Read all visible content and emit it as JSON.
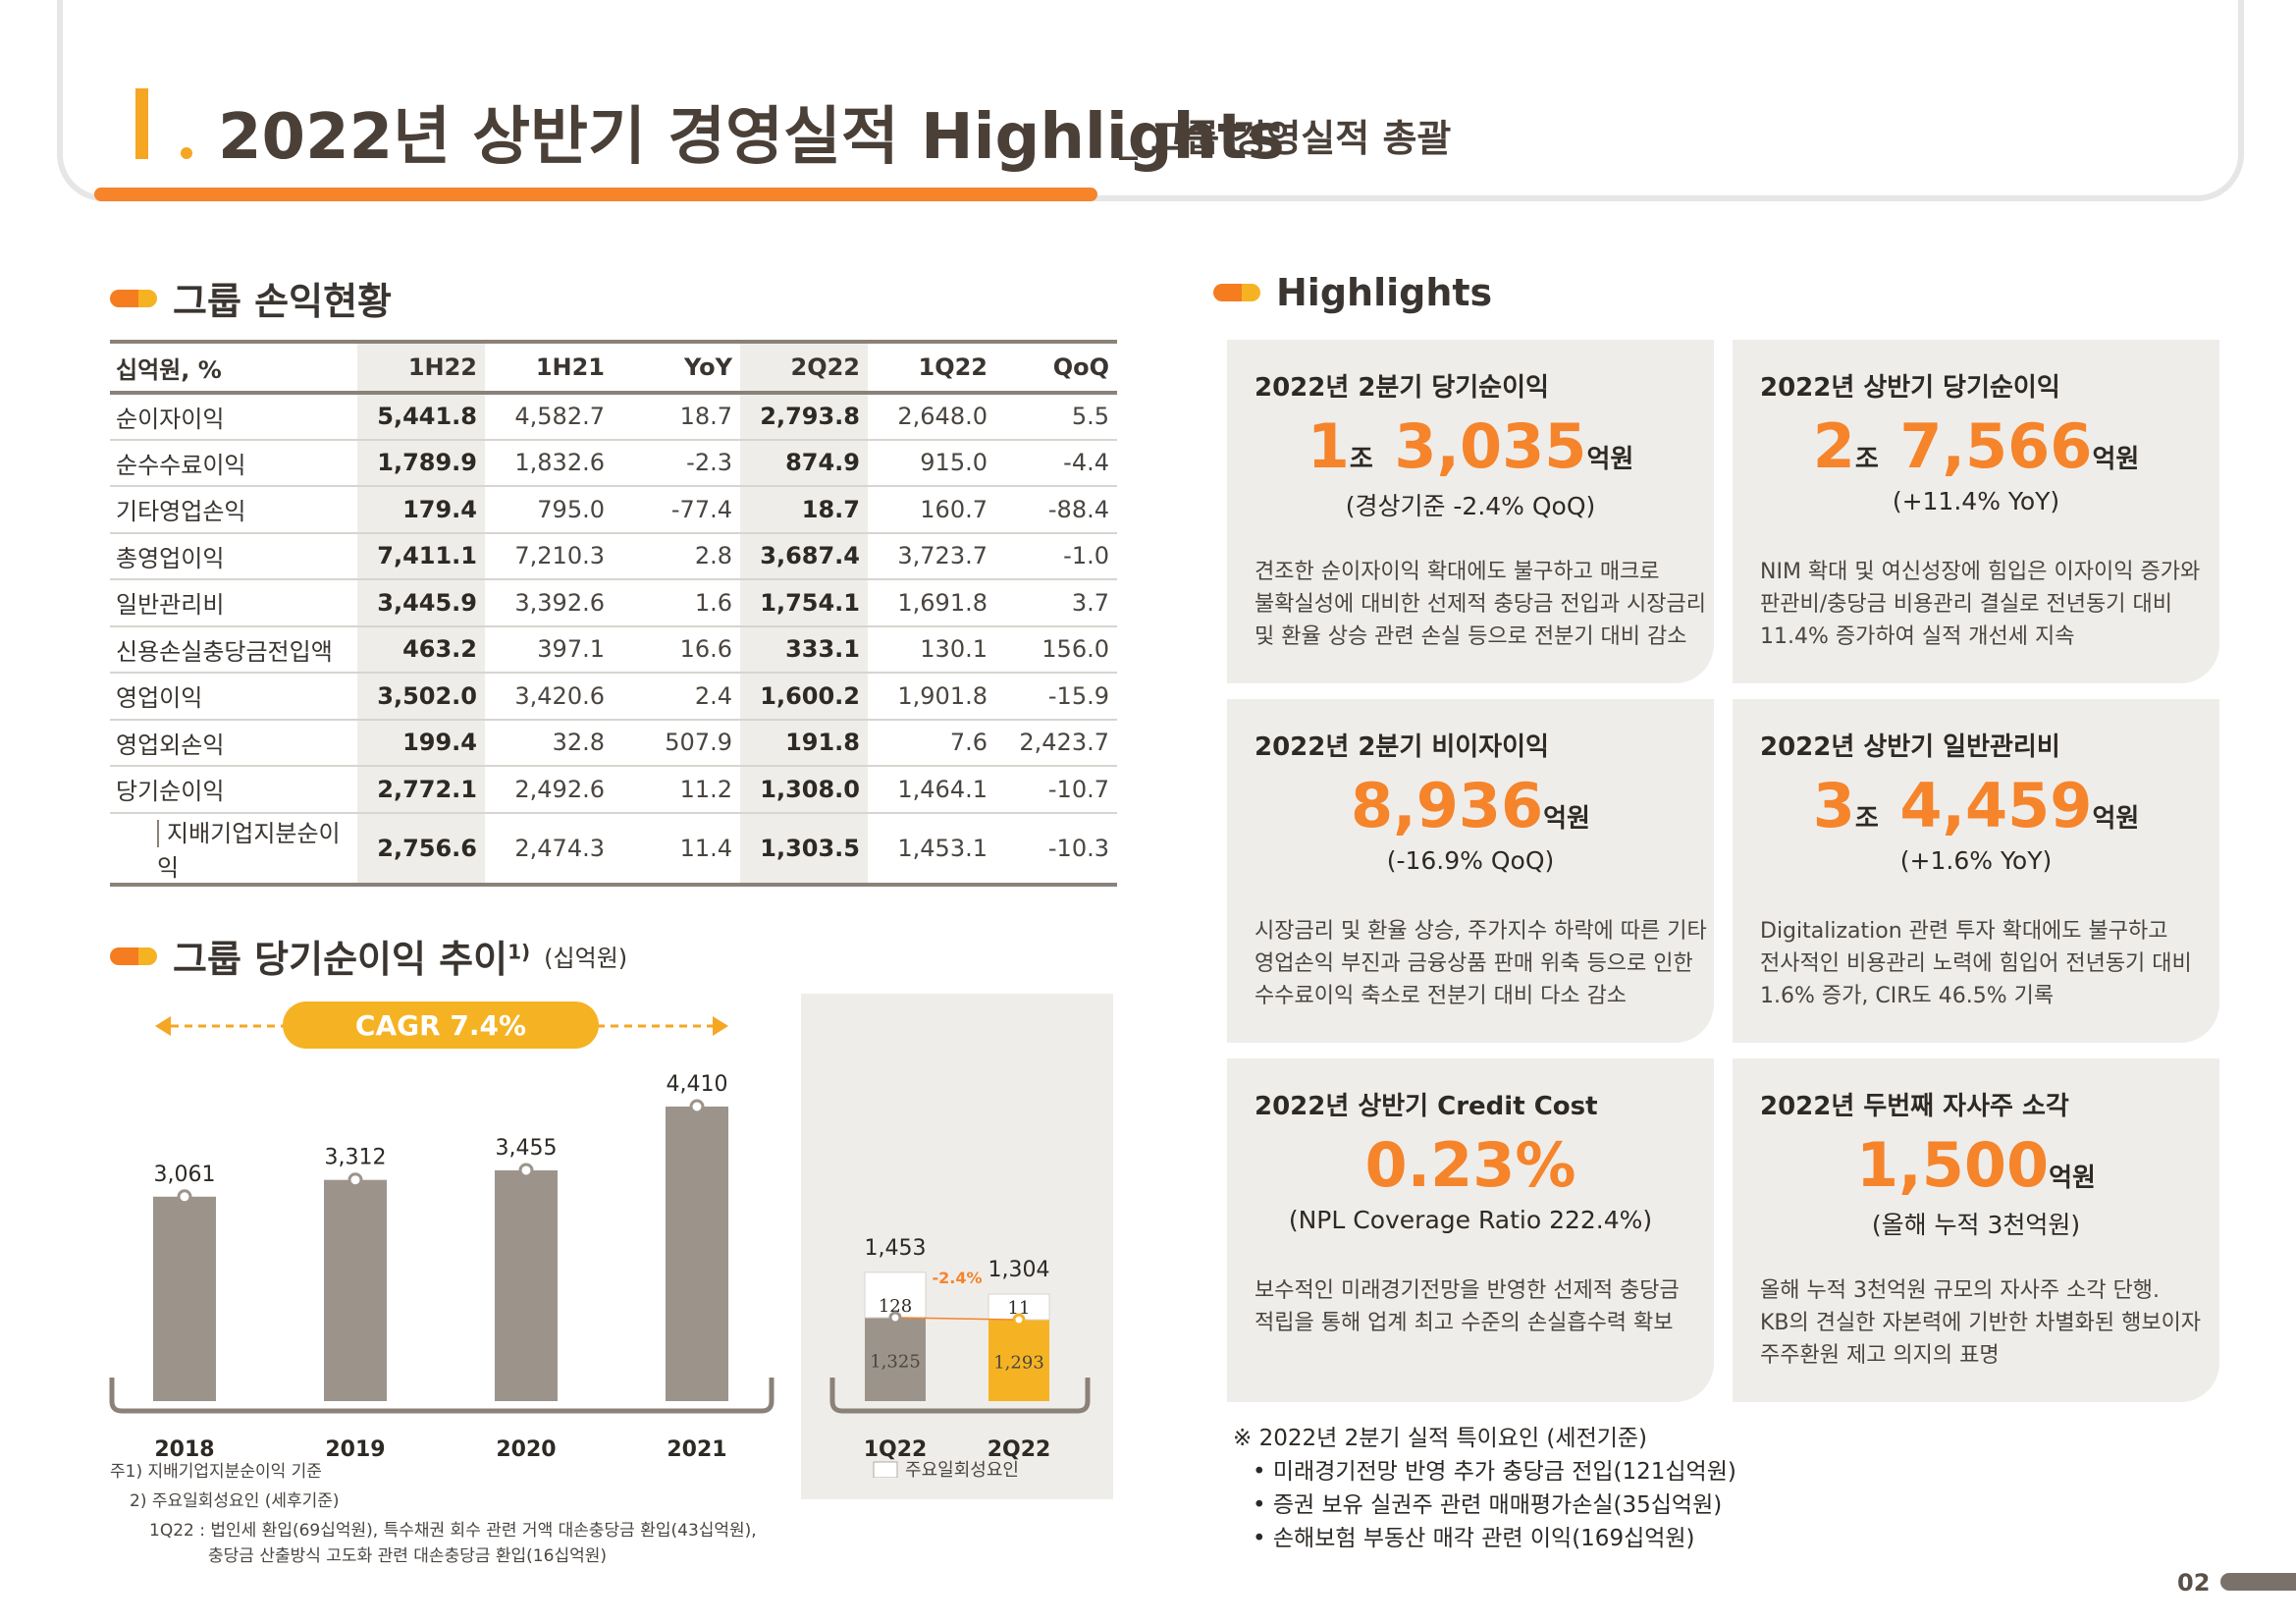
{
  "header": {
    "title": "2022년 상반기 경영실적 Highlights",
    "subtitle": "_ 그룹 경영실적 총괄"
  },
  "pl_section": {
    "title": "그룹 손익현황",
    "columns": [
      "십억원, %",
      "1H22",
      "1H21",
      "YoY",
      "2Q22",
      "1Q22",
      "QoQ"
    ],
    "rows": [
      [
        "순이자이익",
        "5,441.8",
        "4,582.7",
        "18.7",
        "2,793.8",
        "2,648.0",
        "5.5"
      ],
      [
        "순수수료이익",
        "1,789.9",
        "1,832.6",
        "-2.3",
        "874.9",
        "915.0",
        "-4.4"
      ],
      [
        "기타영업손익",
        "179.4",
        "795.0",
        "-77.4",
        "18.7",
        "160.7",
        "-88.4"
      ],
      [
        "총영업이익",
        "7,411.1",
        "7,210.3",
        "2.8",
        "3,687.4",
        "3,723.7",
        "-1.0"
      ],
      [
        "일반관리비",
        "3,445.9",
        "3,392.6",
        "1.6",
        "1,754.1",
        "1,691.8",
        "3.7"
      ],
      [
        "신용손실충당금전입액",
        "463.2",
        "397.1",
        "16.6",
        "333.1",
        "130.1",
        "156.0"
      ],
      [
        "영업이익",
        "3,502.0",
        "3,420.6",
        "2.4",
        "1,600.2",
        "1,901.8",
        "-15.9"
      ],
      [
        "영업외손익",
        "199.4",
        "32.8",
        "507.9",
        "191.8",
        "7.6",
        "2,423.7"
      ],
      [
        "당기순이익",
        "2,772.1",
        "2,492.6",
        "11.2",
        "1,308.0",
        "1,464.1",
        "-10.7"
      ],
      [
        "지배기업지분순이익",
        "2,756.6",
        "2,474.3",
        "11.4",
        "1,303.5",
        "1,453.1",
        "-10.3"
      ]
    ]
  },
  "trend_section": {
    "title": "그룹 당기순이익 추이",
    "title_sup": "1)",
    "unit": "(십억원)",
    "cagr": "CAGR 7.4%",
    "legend": "주요일회성요인",
    "footnotes": [
      "주1) 지배기업지분순이익 기준",
      "2) 주요일회성요인 (세후기준)",
      "1Q22 : 법인세 환입(69십억원), 특수채권 회수 관련 거액 대손충당금 환입(43십억원),",
      "충당금 산출방식 고도화 관련 대손충당금 환입(16십억원)"
    ]
  },
  "chart_data": [
    {
      "type": "bar",
      "categories": [
        "2018",
        "2019",
        "2020",
        "2021"
      ],
      "values": [
        3061,
        3312,
        3455,
        4410
      ],
      "labels": [
        "3,061",
        "3,312",
        "3,455",
        "4,410"
      ]
    },
    {
      "type": "bar",
      "categories": [
        "1Q22",
        "2Q22"
      ],
      "totals": [
        1453,
        1304
      ],
      "total_labels": [
        "1,453",
        "1,304"
      ],
      "series": [
        {
          "values": [
            1325,
            1293
          ],
          "labels": [
            "1,325",
            "1,293"
          ],
          "colors": [
            "#9c948b",
            "#f5b323"
          ]
        },
        {
          "name": "주요일회성요인",
          "values": [
            128,
            11
          ],
          "labels": [
            "128",
            "11"
          ]
        }
      ],
      "change_label": "-2.4%"
    }
  ],
  "highlights": {
    "title": "Highlights",
    "cards": [
      {
        "title": "2022년 2분기 당기순이익",
        "value_a": "1",
        "unit_a": "조",
        "value_b": " 3,035",
        "unit_b": "억원",
        "sub": "(경상기준 -2.4% QoQ)",
        "desc": [
          "견조한 순이자이익 확대에도 불구하고 매크로",
          "불확실성에 대비한 선제적 충당금 전입과 시장금리",
          "및 환율 상승 관련 손실 등으로 전분기 대비 감소"
        ]
      },
      {
        "title": "2022년 상반기 당기순이익",
        "value_a": "2",
        "unit_a": "조",
        "value_b": " 7,566",
        "unit_b": "억원",
        "sub": "(+11.4% YoY)",
        "desc": [
          "NIM 확대 및 여신성장에 힘입은 이자이익 증가와",
          "판관비/충당금 비용관리 결실로 전년동기 대비",
          "11.4% 증가하여 실적 개선세 지속"
        ]
      },
      {
        "title": "2022년 2분기 비이자이익",
        "value_a": "",
        "unit_a": "",
        "value_b": "8,936",
        "unit_b": "억원",
        "sub": "(-16.9% QoQ)",
        "desc": [
          "시장금리 및 환율 상승, 주가지수 하락에 따른 기타",
          "영업손익 부진과 금융상품 판매 위축 등으로 인한",
          "수수료이익 축소로 전분기 대비 다소 감소"
        ]
      },
      {
        "title": "2022년 상반기 일반관리비",
        "value_a": "3",
        "unit_a": "조",
        "value_b": " 4,459",
        "unit_b": "억원",
        "sub": "(+1.6% YoY)",
        "desc": [
          "Digitalization 관련 투자 확대에도 불구하고",
          "전사적인 비용관리 노력에 힘입어 전년동기 대비",
          "1.6% 증가, CIR도 46.5% 기록"
        ]
      },
      {
        "title": "2022년 상반기 Credit Cost",
        "value_a": "",
        "unit_a": "",
        "value_b": "0.23%",
        "unit_b": "",
        "sub": "(NPL Coverage Ratio 222.4%)",
        "desc": [
          "보수적인 미래경기전망을 반영한 선제적 충당금",
          "적립을 통해 업계 최고 수준의 손실흡수력 확보"
        ]
      },
      {
        "title": "2022년 두번째 자사주 소각",
        "value_a": "",
        "unit_a": "",
        "value_b": "1,500",
        "unit_b": "억원",
        "sub": "(올해 누적 3천억원)",
        "desc": [
          "올해 누적 3천억원 규모의 자사주 소각 단행.",
          "KB의 견실한 자본력에 기반한 차별화된 행보이자",
          "주주환원 제고 의지의 표명"
        ]
      }
    ],
    "note": {
      "title": "※ 2022년 2분기 실적 특이요인 (세전기준)",
      "items": [
        "• 미래경기전망 반영 추가 충당금 전입(121십억원)",
        "• 증권 보유 실권주 관련 매매평가손실(35십억원)",
        "• 손해보험 부동산 매각 관련 이익(169십억원)"
      ]
    }
  },
  "page_number": "02",
  "colors": {
    "accent": "#f5842b",
    "accent_light": "#f5b323",
    "bar_gray": "#9c948b",
    "card_bg": "#efedea"
  }
}
